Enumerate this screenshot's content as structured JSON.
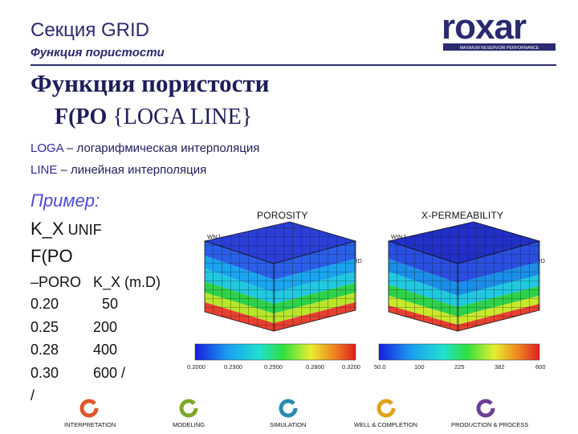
{
  "header": {
    "section_title": "Секция GRID",
    "subtitle": "Функция пористости",
    "brand": "roxar",
    "tagline": "MAXIMUM RESERVOIR PERFORMANCE"
  },
  "heading": {
    "line1": "Функция пористости",
    "func": "F(PO",
    "args": "{LOGA  LINE}"
  },
  "definitions": [
    {
      "kw": "LOGA",
      "text": " – логарифмическая интерполяция"
    },
    {
      "kw": "LINE",
      "text": "  – линейная интерполяция"
    }
  ],
  "example": {
    "label": "Пример:",
    "line_kx_kw": "K_X",
    "line_kx_rest": " UNIF",
    "line_fpo": "F(PO",
    "table_header": "–PORO   K_X (m.D)",
    "rows": [
      {
        "poro": "0.20",
        "kx": "50"
      },
      {
        "poro": "0.25",
        "kx": "200"
      },
      {
        "poro": "0.28",
        "kx": "400"
      },
      {
        "poro": "0.30",
        "kx": "600 /"
      }
    ],
    "terminator": "/"
  },
  "figures": [
    {
      "title": "POROSITY",
      "corner_labels": [
        "WNJ",
        "WPRD"
      ],
      "colorbar_ticks": [
        "0.2000",
        "0.2300",
        "0.2500",
        "0.2800",
        "0.3200"
      ]
    },
    {
      "title": "X-PERMEABILITY",
      "corner_labels": [
        "WINJ",
        "WPRD"
      ],
      "colorbar_ticks": [
        "50.0",
        "100",
        "225",
        "382",
        "600"
      ]
    }
  ],
  "footer": [
    {
      "label": "INTERPRETATION",
      "color": "#e0552b",
      "icon": "interpretation-icon"
    },
    {
      "label": "MODELING",
      "color": "#7fa82a",
      "icon": "modeling-icon"
    },
    {
      "label": "SIMULATION",
      "color": "#2a8ab3",
      "icon": "simulation-icon"
    },
    {
      "label": "WELL & COMPLETION",
      "color": "#e0a21a",
      "icon": "well-completion-icon"
    },
    {
      "label": "PRODUCTION & PROCESS",
      "color": "#6b3f93",
      "icon": "production-process-icon"
    }
  ],
  "colors": {
    "navy": "#2a2a6e",
    "example_blue": "#4b4bd6"
  }
}
